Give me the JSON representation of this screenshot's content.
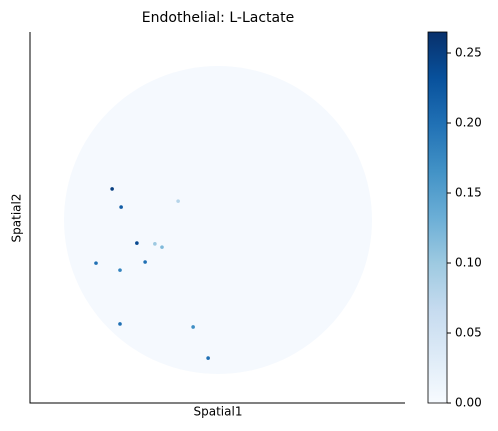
{
  "chart_data": {
    "type": "scatter",
    "title": "Endothelial: L-Lactate",
    "x_label": "Spatial1",
    "y_label": "Spatial2",
    "x": [
      21.9,
      24.3,
      28.5,
      30.7,
      24.0,
      17.6,
      24.0,
      43.5,
      47.5,
      39.5,
      33.3,
      35.2
    ],
    "y": [
      57.7,
      52.8,
      43.1,
      38.0,
      35.8,
      37.7,
      21.3,
      20.5,
      12.1,
      54.4,
      42.9,
      42.0
    ],
    "values": [
      0.25,
      0.22,
      0.24,
      0.2,
      0.18,
      0.2,
      0.2,
      0.17,
      0.2,
      0.08,
      0.1,
      0.12
    ],
    "xlim": [
      0,
      100
    ],
    "ylim": [
      0,
      100
    ],
    "clim": [
      0,
      0.265
    ],
    "cticks": [
      {
        "value": 0,
        "label": "0.00"
      },
      {
        "value": 0.05,
        "label": "0.05"
      },
      {
        "value": 0.1,
        "label": "0.10"
      },
      {
        "value": 0.15,
        "label": "0.15"
      },
      {
        "value": 0.2,
        "label": "0.20"
      },
      {
        "value": 0.25,
        "label": "0.25"
      }
    ],
    "cmap": [
      "#f7fbff",
      "#deebf7",
      "#c6dbef",
      "#9ecae1",
      "#6baed6",
      "#4292c6",
      "#2171b5",
      "#08519c",
      "#08306b"
    ]
  }
}
